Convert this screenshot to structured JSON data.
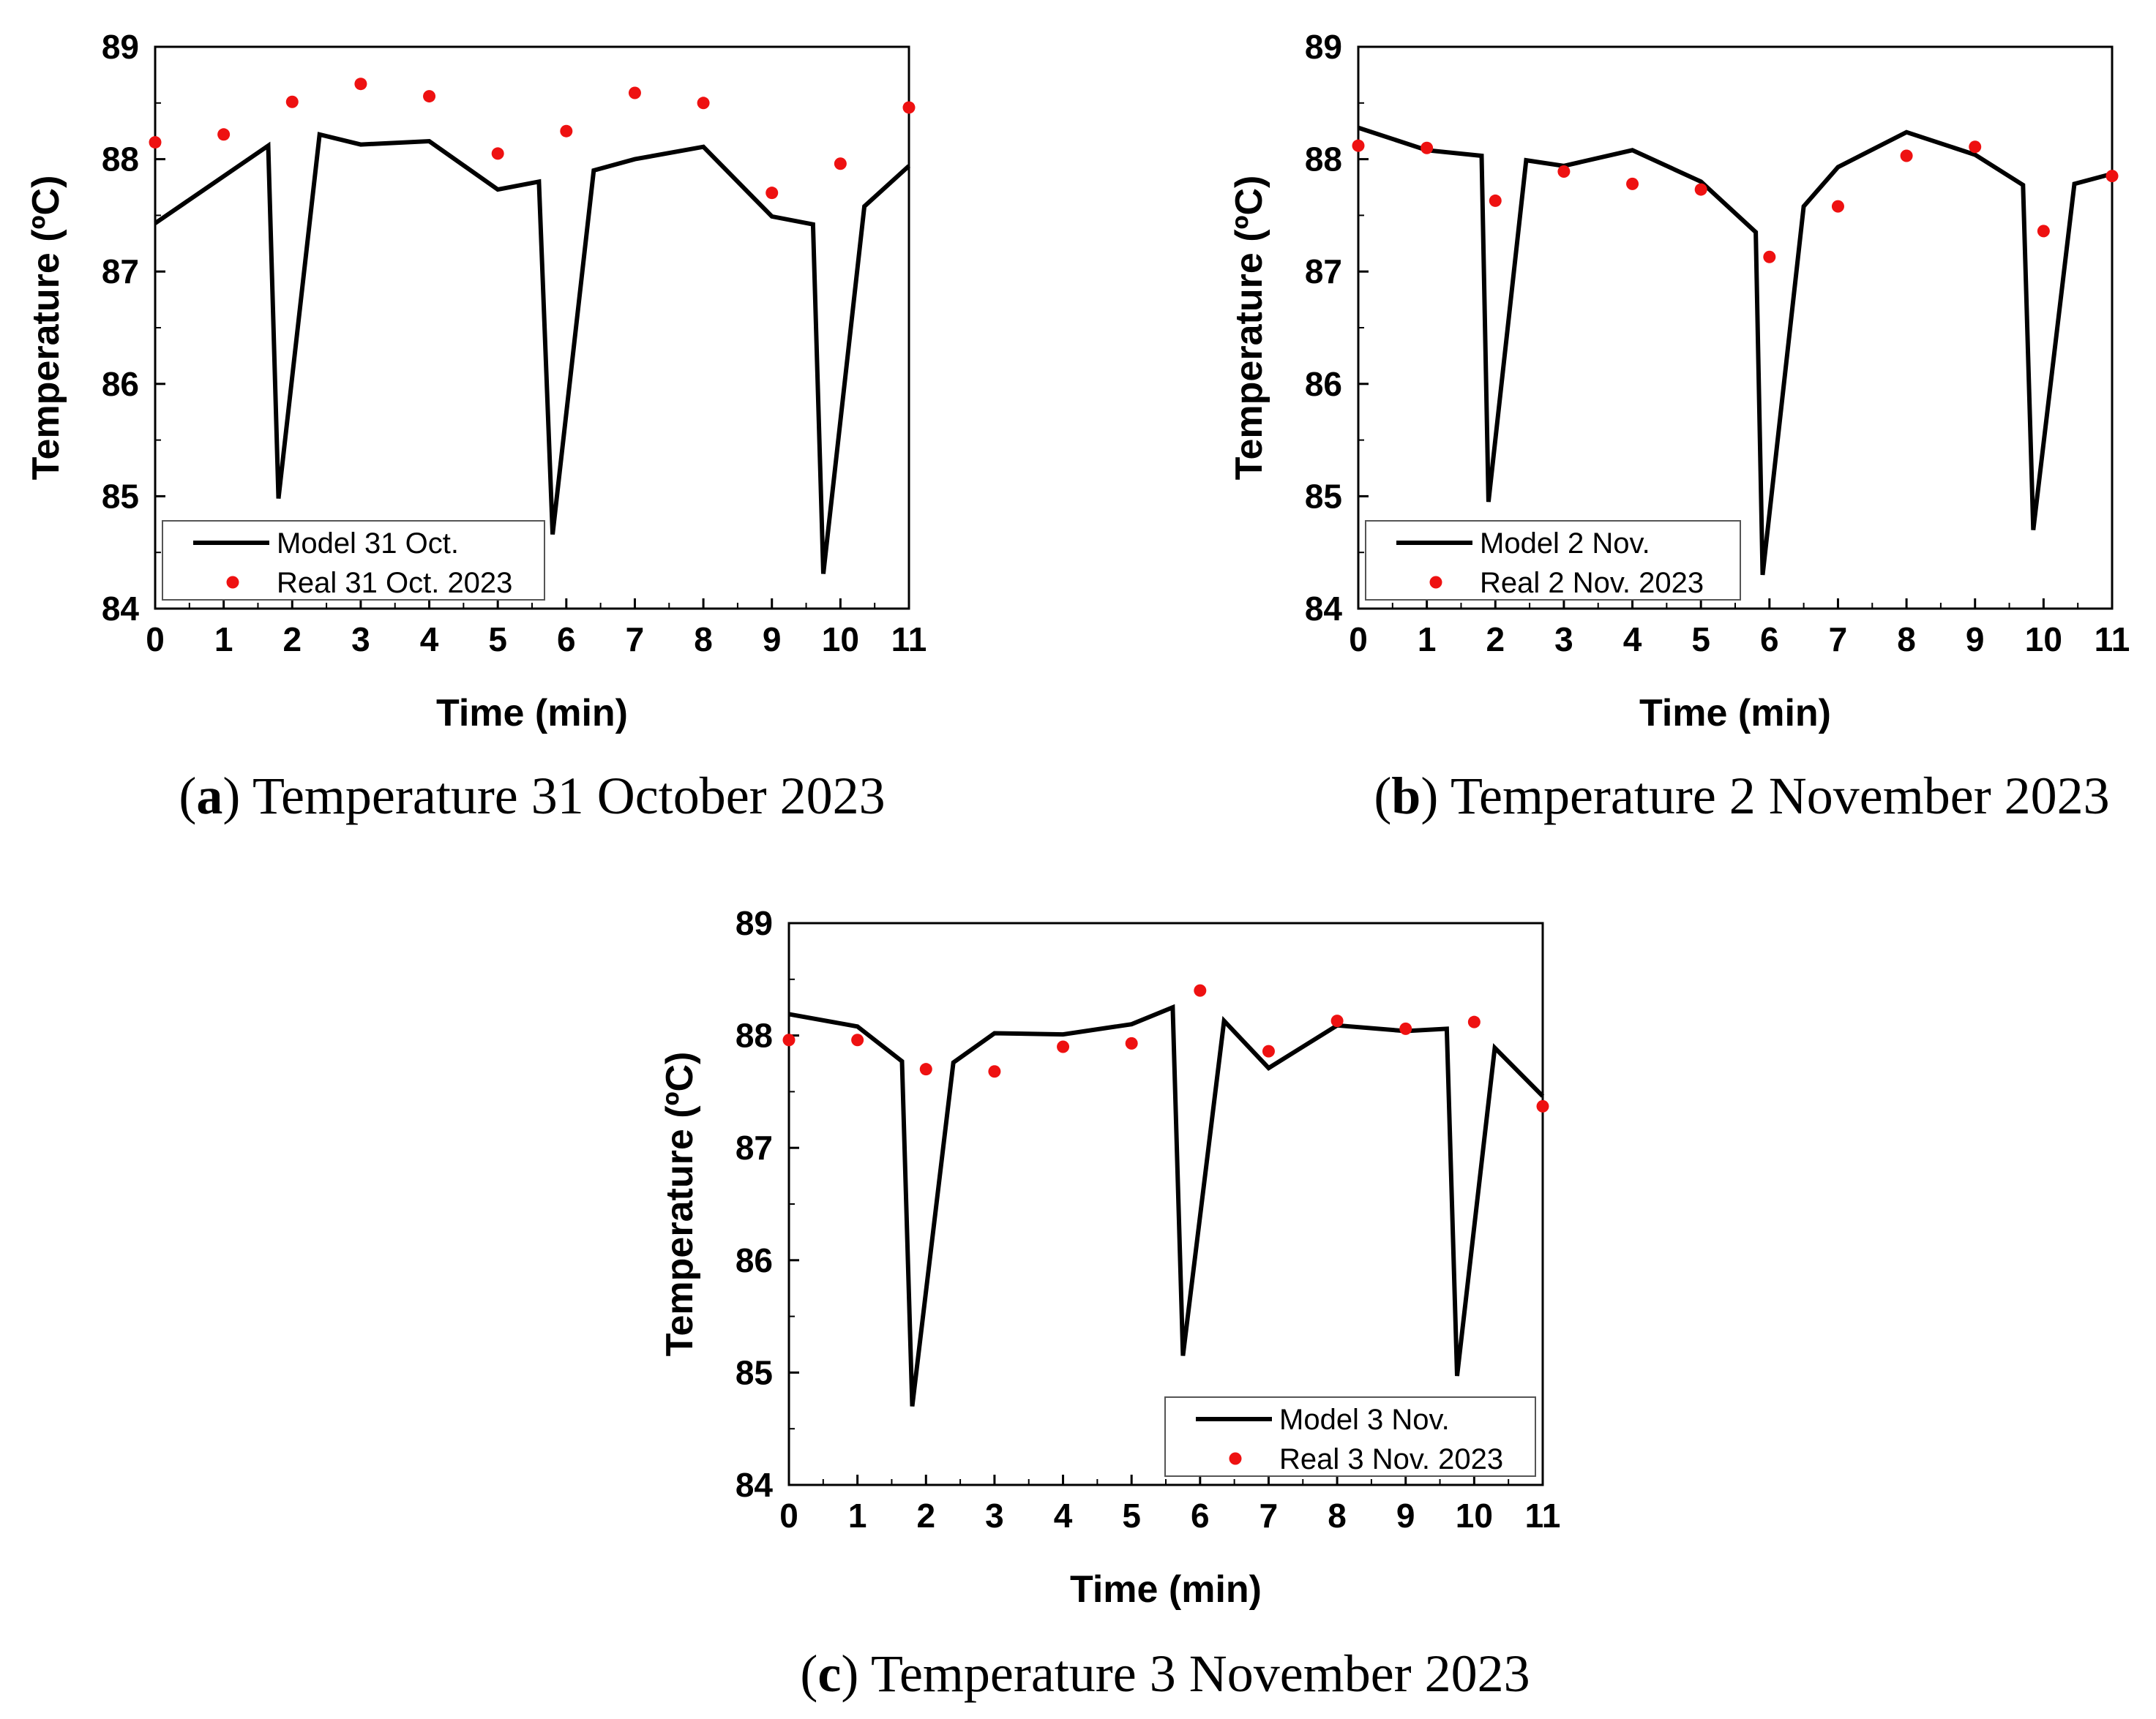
{
  "chart_data": [
    {
      "type": "line",
      "panel": "a",
      "caption_letter": "a",
      "caption_text": "Temperature 31 October 2023",
      "xlabel": "Time (min)",
      "ylabel": "Temperature (ºC)",
      "xlim": [
        0,
        11
      ],
      "ylim": [
        84,
        89
      ],
      "xticks": [
        0,
        1,
        2,
        3,
        4,
        5,
        6,
        7,
        8,
        9,
        10,
        11
      ],
      "yticks": [
        84,
        85,
        86,
        87,
        88,
        89
      ],
      "legend_position": "bottom-left",
      "series": [
        {
          "name": "Model 31 Oct.",
          "kind": "line",
          "color": "#000000",
          "x": [
            0,
            1.65,
            1.8,
            2.4,
            3.0,
            4.0,
            5.0,
            5.6,
            5.8,
            6.4,
            7.0,
            8.0,
            9.0,
            9.6,
            9.75,
            10.35,
            11
          ],
          "y": [
            87.43,
            88.12,
            84.98,
            88.22,
            88.13,
            88.16,
            87.73,
            87.8,
            84.66,
            87.9,
            88.0,
            88.11,
            87.49,
            87.42,
            84.31,
            87.58,
            87.94
          ]
        },
        {
          "name": "Real 31 Oct. 2023",
          "kind": "scatter",
          "color": "#ee1111",
          "x": [
            0,
            1,
            2,
            3,
            4,
            5,
            6,
            7,
            8,
            9,
            10,
            11
          ],
          "y": [
            88.15,
            88.22,
            88.51,
            88.67,
            88.56,
            88.05,
            88.25,
            88.59,
            88.5,
            87.7,
            87.96,
            88.46
          ]
        }
      ]
    },
    {
      "type": "line",
      "panel": "b",
      "caption_letter": "b",
      "caption_text": "Temperature 2 November 2023",
      "xlabel": "Time (min)",
      "ylabel": "Temperature (ºC)",
      "xlim": [
        0,
        11
      ],
      "ylim": [
        84,
        89
      ],
      "xticks": [
        0,
        1,
        2,
        3,
        4,
        5,
        6,
        7,
        8,
        9,
        10,
        11
      ],
      "yticks": [
        84,
        85,
        86,
        87,
        88,
        89
      ],
      "legend_position": "bottom-left",
      "series": [
        {
          "name": "Model 2 Nov.",
          "kind": "line",
          "color": "#000000",
          "x": [
            0,
            1.0,
            1.8,
            1.9,
            2.45,
            3.0,
            4.0,
            5.0,
            5.8,
            5.9,
            6.5,
            7.0,
            8.0,
            9.0,
            9.7,
            9.85,
            10.45,
            11
          ],
          "y": [
            88.28,
            88.08,
            88.03,
            84.95,
            87.99,
            87.94,
            88.08,
            87.8,
            87.35,
            84.3,
            87.58,
            87.93,
            88.24,
            88.04,
            87.77,
            84.7,
            87.78,
            87.87
          ]
        },
        {
          "name": "Real 2 Nov. 2023",
          "kind": "scatter",
          "color": "#ee1111",
          "x": [
            0,
            1,
            2,
            3,
            4,
            5,
            6,
            7,
            8,
            9,
            10,
            11
          ],
          "y": [
            88.12,
            88.1,
            87.63,
            87.89,
            87.78,
            87.73,
            87.13,
            87.58,
            88.03,
            88.11,
            87.36,
            87.85
          ]
        }
      ]
    },
    {
      "type": "line",
      "panel": "c",
      "caption_letter": "c",
      "caption_text": "Temperature 3 November 2023",
      "xlabel": "Time (min)",
      "ylabel": "Temperature (ºC)",
      "xlim": [
        0,
        11
      ],
      "ylim": [
        84,
        89
      ],
      "xticks": [
        0,
        1,
        2,
        3,
        4,
        5,
        6,
        7,
        8,
        9,
        10,
        11
      ],
      "yticks": [
        84,
        85,
        86,
        87,
        88,
        89
      ],
      "legend_position": "bottom-right",
      "series": [
        {
          "name": "Model 3 Nov.",
          "kind": "line",
          "color": "#000000",
          "x": [
            0,
            1.0,
            1.65,
            1.8,
            2.4,
            3.0,
            4.0,
            5.0,
            5.6,
            5.75,
            6.35,
            7.0,
            8.0,
            9.0,
            9.6,
            9.75,
            10.3,
            11
          ],
          "y": [
            88.19,
            88.08,
            87.77,
            84.7,
            87.76,
            88.02,
            88.01,
            88.1,
            88.25,
            85.15,
            88.13,
            87.71,
            88.09,
            88.04,
            88.06,
            84.97,
            87.89,
            87.46
          ]
        },
        {
          "name": "Real 3 Nov. 2023",
          "kind": "scatter",
          "color": "#ee1111",
          "x": [
            0,
            1,
            2,
            3,
            4,
            5,
            6,
            7,
            8,
            9,
            10,
            11
          ],
          "y": [
            87.96,
            87.96,
            87.7,
            87.68,
            87.9,
            87.93,
            88.4,
            87.86,
            88.13,
            88.06,
            88.12,
            87.37
          ]
        }
      ]
    }
  ]
}
